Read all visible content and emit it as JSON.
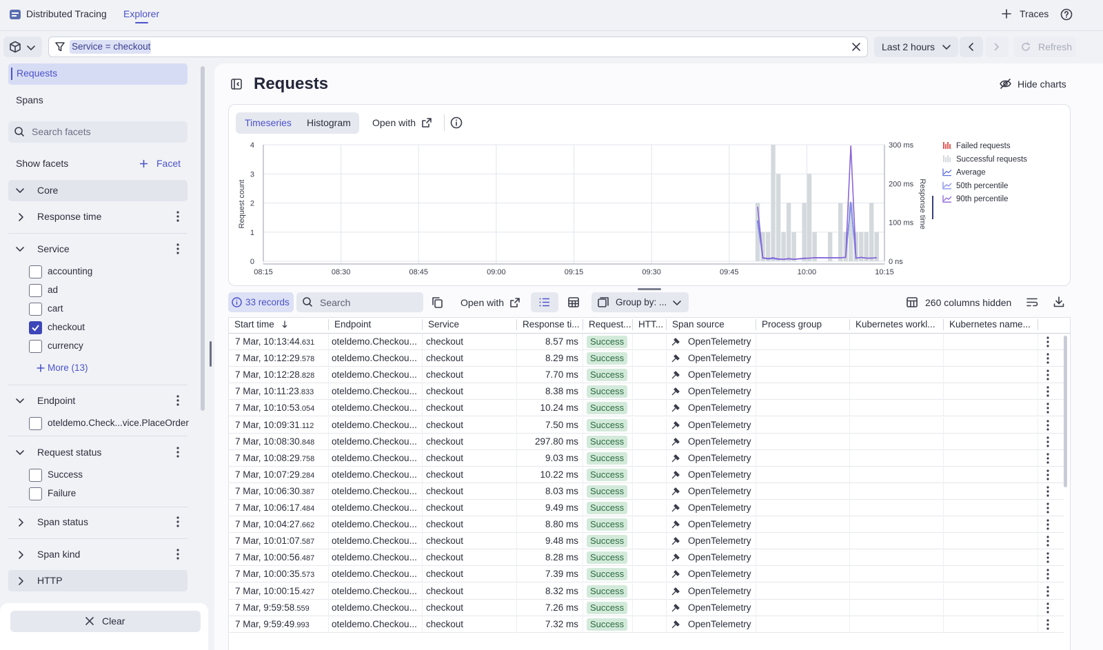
{
  "header": {
    "app_name": "Distributed Tracing",
    "tab": "Explorer",
    "traces": "Traces"
  },
  "filter": {
    "chip": "Service = checkout",
    "time_range": "Last 2 hours",
    "refresh": "Refresh"
  },
  "sidebar": {
    "views": [
      "Requests",
      "Spans"
    ],
    "search_placeholder": "Search facets",
    "show_facets": "Show facets",
    "add_facet": "Facet",
    "sections": [
      {
        "label": "Core",
        "kind": "group",
        "expanded": true
      },
      {
        "label": "Response time",
        "expanded": false
      },
      {
        "label": "Service",
        "expanded": true,
        "options": [
          {
            "label": "accounting",
            "checked": false
          },
          {
            "label": "ad",
            "checked": false
          },
          {
            "label": "cart",
            "checked": false
          },
          {
            "label": "checkout",
            "checked": true
          },
          {
            "label": "currency",
            "checked": false
          }
        ],
        "more": "More (13)"
      },
      {
        "label": "Endpoint",
        "expanded": true,
        "options": [
          {
            "label": "oteldemo.Check...vice.PlaceOrder",
            "checked": false
          }
        ]
      },
      {
        "label": "Request status",
        "expanded": true,
        "options": [
          {
            "label": "Success",
            "checked": false
          },
          {
            "label": "Failure",
            "checked": false
          }
        ]
      },
      {
        "label": "Span status",
        "expanded": false
      },
      {
        "label": "Span kind",
        "expanded": false
      },
      {
        "label": "HTTP",
        "kind": "group",
        "expanded": false
      }
    ],
    "clear": "Clear"
  },
  "main": {
    "title": "Requests",
    "hide_charts": "Hide charts",
    "chart_tabs": [
      "Timeseries",
      "Histogram"
    ],
    "open_with": "Open with"
  },
  "chart_data": {
    "type": "combo",
    "y_label": "Request count",
    "y2_label": "Response time",
    "x": [
      "09:50",
      "09:51",
      "09:52",
      "09:53",
      "09:54",
      "09:55",
      "09:56",
      "09:57",
      "09:59",
      "10:00",
      "10:01",
      "10:04",
      "10:06",
      "10:07",
      "10:08",
      "10:09",
      "10:10",
      "10:11",
      "10:12",
      "10:13"
    ],
    "xlim": [
      "08:15",
      "10:15"
    ],
    "xticks": [
      "08:15",
      "08:30",
      "08:45",
      "09:00",
      "09:15",
      "09:30",
      "09:45",
      "10:00",
      "10:15"
    ],
    "ylim": [
      0,
      4
    ],
    "yticks": [
      0,
      1,
      2,
      3,
      4
    ],
    "y2lim": [
      0,
      300
    ],
    "y2ticks": [
      {
        "value": 0,
        "label": "0 ns"
      },
      {
        "value": 100,
        "label": "100 ms"
      },
      {
        "value": 200,
        "label": "200 ms"
      },
      {
        "value": 300,
        "label": "300 ms"
      }
    ],
    "grid": true,
    "legend": "right",
    "series": [
      {
        "name": "Failed requests",
        "kind": "bar",
        "color": "#e05a5a",
        "values": [
          0,
          0,
          0,
          0,
          0,
          0,
          0,
          0,
          0,
          0,
          0,
          0,
          0,
          0,
          0,
          0,
          0,
          0,
          0,
          0
        ]
      },
      {
        "name": "Successful requests",
        "kind": "bar",
        "color": "#d3d9dc",
        "values": [
          2,
          1,
          1,
          4,
          3,
          1,
          2,
          1,
          2,
          3,
          1,
          1,
          2,
          1,
          2,
          1,
          1,
          1,
          2,
          1
        ]
      },
      {
        "name": "Average",
        "kind": "line",
        "axis": "y2",
        "color": "#5b6ee1",
        "values": [
          105,
          8,
          6,
          7,
          5,
          5,
          6,
          5,
          7,
          8,
          9,
          9,
          9,
          10,
          153,
          8,
          10,
          8,
          8,
          9
        ]
      },
      {
        "name": "50th percentile",
        "kind": "line",
        "axis": "y2",
        "color": "#7f8aec",
        "values": [
          100,
          8,
          6,
          7,
          5,
          5,
          6,
          5,
          7,
          8,
          9,
          9,
          9,
          10,
          150,
          8,
          10,
          8,
          8,
          9
        ]
      },
      {
        "name": "90th percentile",
        "kind": "line",
        "axis": "y2",
        "color": "#8a64d6",
        "values": [
          140,
          9,
          7,
          9,
          6,
          5,
          7,
          5,
          8,
          8,
          9,
          9,
          9,
          10,
          298,
          8,
          10,
          8,
          8,
          9
        ]
      }
    ]
  },
  "toolbar": {
    "records": "33 records",
    "search_placeholder": "Search",
    "open_with": "Open with",
    "group_by": "Group by: ...",
    "columns_hidden": "260 columns hidden"
  },
  "table": {
    "columns": [
      "Start time",
      "Endpoint",
      "Service",
      "Response ti...",
      "Request...",
      "HTT...",
      "Span source",
      "Process group",
      "Kubernetes workl...",
      "Kubernetes name..."
    ],
    "rows": [
      {
        "start": "7 Mar, 10:13:44",
        "ms": ".631",
        "endpoint": "oteldemo.Checkou...",
        "service": "checkout",
        "response_time": "8.57 ms",
        "status": "Success",
        "span_source": "OpenTelemetry"
      },
      {
        "start": "7 Mar, 10:12:29",
        "ms": ".578",
        "endpoint": "oteldemo.Checkou...",
        "service": "checkout",
        "response_time": "8.29 ms",
        "status": "Success",
        "span_source": "OpenTelemetry"
      },
      {
        "start": "7 Mar, 10:12:28",
        "ms": ".828",
        "endpoint": "oteldemo.Checkou...",
        "service": "checkout",
        "response_time": "7.70 ms",
        "status": "Success",
        "span_source": "OpenTelemetry"
      },
      {
        "start": "7 Mar, 10:11:23",
        "ms": ".833",
        "endpoint": "oteldemo.Checkou...",
        "service": "checkout",
        "response_time": "8.38 ms",
        "status": "Success",
        "span_source": "OpenTelemetry"
      },
      {
        "start": "7 Mar, 10:10:53",
        "ms": ".054",
        "endpoint": "oteldemo.Checkou...",
        "service": "checkout",
        "response_time": "10.24 ms",
        "status": "Success",
        "span_source": "OpenTelemetry"
      },
      {
        "start": "7 Mar, 10:09:31",
        "ms": ".112",
        "endpoint": "oteldemo.Checkou...",
        "service": "checkout",
        "response_time": "7.50 ms",
        "status": "Success",
        "span_source": "OpenTelemetry"
      },
      {
        "start": "7 Mar, 10:08:30",
        "ms": ".848",
        "endpoint": "oteldemo.Checkou...",
        "service": "checkout",
        "response_time": "297.80 ms",
        "status": "Success",
        "span_source": "OpenTelemetry"
      },
      {
        "start": "7 Mar, 10:08:29",
        "ms": ".758",
        "endpoint": "oteldemo.Checkou...",
        "service": "checkout",
        "response_time": "9.03 ms",
        "status": "Success",
        "span_source": "OpenTelemetry"
      },
      {
        "start": "7 Mar, 10:07:29",
        "ms": ".284",
        "endpoint": "oteldemo.Checkou...",
        "service": "checkout",
        "response_time": "10.22 ms",
        "status": "Success",
        "span_source": "OpenTelemetry"
      },
      {
        "start": "7 Mar, 10:06:30",
        "ms": ".387",
        "endpoint": "oteldemo.Checkou...",
        "service": "checkout",
        "response_time": "8.03 ms",
        "status": "Success",
        "span_source": "OpenTelemetry"
      },
      {
        "start": "7 Mar, 10:06:17",
        "ms": ".484",
        "endpoint": "oteldemo.Checkou...",
        "service": "checkout",
        "response_time": "9.49 ms",
        "status": "Success",
        "span_source": "OpenTelemetry"
      },
      {
        "start": "7 Mar, 10:04:27",
        "ms": ".662",
        "endpoint": "oteldemo.Checkou...",
        "service": "checkout",
        "response_time": "8.80 ms",
        "status": "Success",
        "span_source": "OpenTelemetry"
      },
      {
        "start": "7 Mar, 10:01:07",
        "ms": ".587",
        "endpoint": "oteldemo.Checkou...",
        "service": "checkout",
        "response_time": "9.48 ms",
        "status": "Success",
        "span_source": "OpenTelemetry"
      },
      {
        "start": "7 Mar, 10:00:56",
        "ms": ".487",
        "endpoint": "oteldemo.Checkou...",
        "service": "checkout",
        "response_time": "8.28 ms",
        "status": "Success",
        "span_source": "OpenTelemetry"
      },
      {
        "start": "7 Mar, 10:00:35",
        "ms": ".573",
        "endpoint": "oteldemo.Checkou...",
        "service": "checkout",
        "response_time": "7.39 ms",
        "status": "Success",
        "span_source": "OpenTelemetry"
      },
      {
        "start": "7 Mar, 10:00:15",
        "ms": ".427",
        "endpoint": "oteldemo.Checkou...",
        "service": "checkout",
        "response_time": "8.32 ms",
        "status": "Success",
        "span_source": "OpenTelemetry"
      },
      {
        "start": "7 Mar, 9:59:58",
        "ms": ".559",
        "endpoint": "oteldemo.Checkou...",
        "service": "checkout",
        "response_time": "7.26 ms",
        "status": "Success",
        "span_source": "OpenTelemetry"
      },
      {
        "start": "7 Mar, 9:59:49",
        "ms": ".993",
        "endpoint": "oteldemo.Checkou...",
        "service": "checkout",
        "response_time": "7.32 ms",
        "status": "Success",
        "span_source": "OpenTelemetry"
      }
    ]
  }
}
